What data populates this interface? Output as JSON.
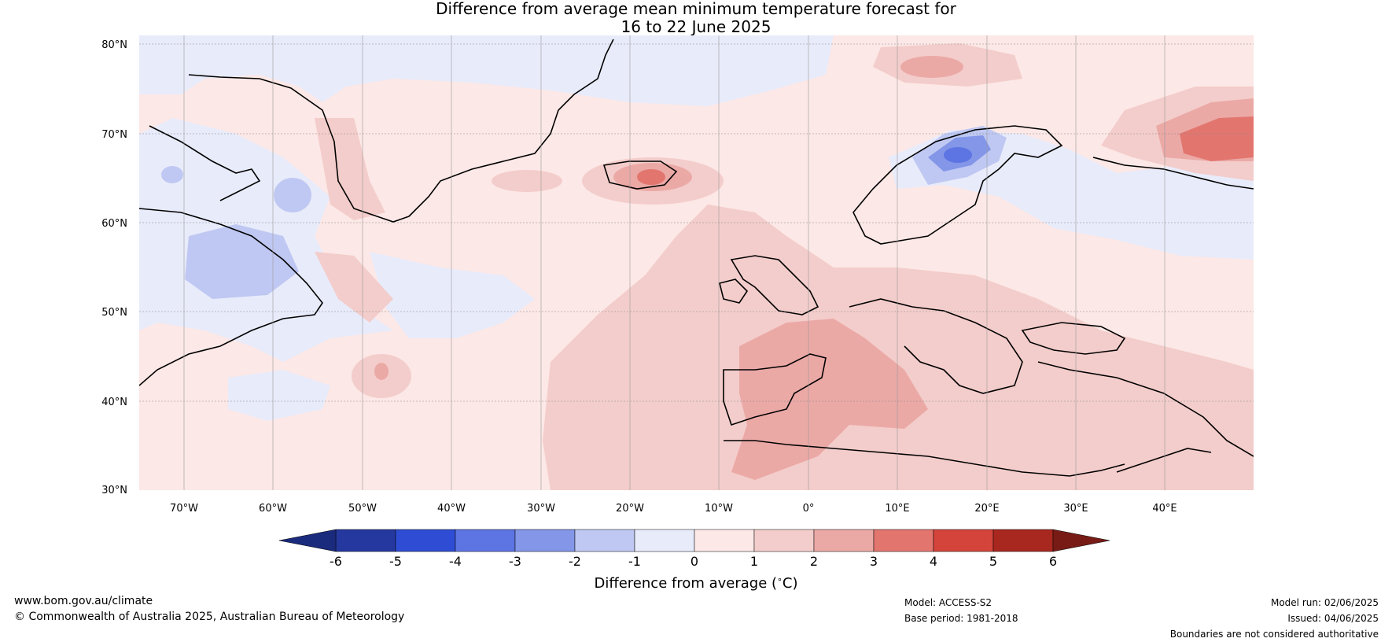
{
  "title": {
    "line1": "Difference from average mean minimum temperature forecast for",
    "line2": "16 to 22 June 2025"
  },
  "map": {
    "lat_labels": [
      "80°N",
      "70°N",
      "60°N",
      "50°N",
      "40°N",
      "30°N"
    ],
    "lon_labels": [
      "70°W",
      "60°W",
      "50°W",
      "40°W",
      "30°W",
      "20°W",
      "10°W",
      "0°",
      "10°E",
      "20°E",
      "30°E",
      "40°E"
    ],
    "extent": {
      "lon": [
        -75,
        50
      ],
      "lat": [
        30,
        81
      ]
    },
    "anomaly_areas": [
      {
        "name": "Iceland",
        "class": "+2 to +4"
      },
      {
        "name": "Northern Scandinavia",
        "class": "-3 to -4"
      },
      {
        "name": "Northwest Russia",
        "class": "+3 to +5"
      },
      {
        "name": "France and Western Mediterranean",
        "class": "+2 to +4"
      },
      {
        "name": "Labrador Sea",
        "class": "-1 to -2"
      }
    ]
  },
  "colorbar": {
    "ticks": [
      "-6",
      "-5",
      "-4",
      "-3",
      "-2",
      "-1",
      "0",
      "1",
      "2",
      "3",
      "4",
      "5",
      "6"
    ],
    "colors": [
      "#25389f",
      "#2f4dd4",
      "#5d74e3",
      "#8396e8",
      "#bfc8f2",
      "#e8ebfa",
      "#fce8e6",
      "#f3cdcb",
      "#eba9a6",
      "#e2766f",
      "#d4443b",
      "#a8271f"
    ],
    "under_color": "#1a2a7c",
    "over_color": "#781b16",
    "label_prefix": "Difference from average (",
    "label_unit": "C)",
    "degree_symbol": "∘"
  },
  "footer": {
    "website": "www.bom.gov.au/climate",
    "copyright": "© Commonwealth of Australia 2025, Australian Bureau of Meteorology",
    "model": "Model: ACCESS-S2",
    "base_period": "Base period: 1981-2018",
    "model_run": "Model run: 02/06/2025",
    "issued": "Issued: 04/06/2025",
    "disclaimer": "Boundaries are not considered authoritative"
  }
}
